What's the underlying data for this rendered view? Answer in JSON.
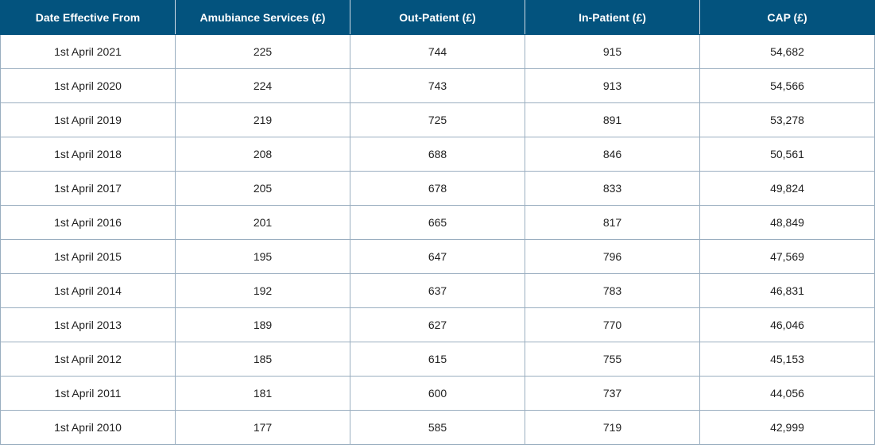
{
  "table": {
    "headers": [
      "Date Effective From",
      "Amubiance Services (£)",
      "Out-Patient (£)",
      "In-Patient (£)",
      "CAP (£)"
    ],
    "rows": [
      [
        "1st April 2021",
        "225",
        "744",
        "915",
        "54,682"
      ],
      [
        "1st April 2020",
        "224",
        "743",
        "913",
        "54,566"
      ],
      [
        "1st April 2019",
        "219",
        "725",
        "891",
        "53,278"
      ],
      [
        "1st April 2018",
        "208",
        "688",
        "846",
        "50,561"
      ],
      [
        "1st April 2017",
        "205",
        "678",
        "833",
        "49,824"
      ],
      [
        "1st April 2016",
        "201",
        "665",
        "817",
        "48,849"
      ],
      [
        "1st April 2015",
        "195",
        "647",
        "796",
        "47,569"
      ],
      [
        "1st April 2014",
        "192",
        "637",
        "783",
        "46,831"
      ],
      [
        "1st April 2013",
        "189",
        "627",
        "770",
        "46,046"
      ],
      [
        "1st April 2012",
        "185",
        "615",
        "755",
        "45,153"
      ],
      [
        "1st April 2011",
        "181",
        "600",
        "737",
        "44,056"
      ],
      [
        "1st April 2010",
        "177",
        "585",
        "719",
        "42,999"
      ]
    ]
  },
  "colors": {
    "header_background": "#03537e",
    "header_text": "#ffffff",
    "grid_line": "#9aaec0",
    "body_text": "#222222"
  }
}
